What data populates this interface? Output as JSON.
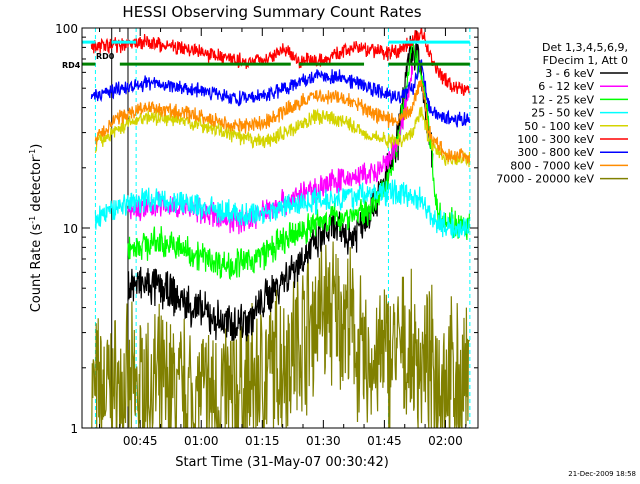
{
  "chart_data": {
    "type": "line",
    "title": "HESSI Observing Summary Count Rates",
    "xlabel": "Start Time (31-May-07 00:30:42)",
    "ylabel_main": "Count Rate (s",
    "ylabel_sup": "-1",
    "ylabel_tail": " detector",
    "ylabel_close": ")",
    "yscale": "log",
    "ylim": [
      1,
      100
    ],
    "y_ticks": [
      "1",
      "10",
      "100"
    ],
    "xlim_min": [
      30.7,
      108
    ],
    "x_ticks": [
      {
        "t": 45,
        "label": "00:45"
      },
      {
        "t": 60,
        "label": "01:00"
      },
      {
        "t": 75,
        "label": "01:15"
      },
      {
        "t": 90,
        "label": "01:30"
      },
      {
        "t": 105,
        "label": "01:45"
      },
      {
        "t": 120,
        "label": "02:00"
      }
    ],
    "flag_labels": {
      "a": "RD4",
      "b": "RD0"
    },
    "timestamp": "21-Dec-2009 18:58",
    "legend": {
      "line1": "Det 1,3,4,5,6,9,",
      "line2": "FDecim 1, Att 0",
      "entries": [
        {
          "label": "3 - 6 keV",
          "color": "#000000"
        },
        {
          "label": "6 - 12 keV",
          "color": "#ff00ff"
        },
        {
          "label": "12 - 25 keV",
          "color": "#00ff00"
        },
        {
          "label": "25 - 50 keV",
          "color": "#00ffff"
        },
        {
          "label": "50 - 100 keV",
          "color": "#d4d400"
        },
        {
          "label": "100 - 300 keV",
          "color": "#ff0000"
        },
        {
          "label": "300 - 800 keV",
          "color": "#0000ff"
        },
        {
          "label": "800 - 7000 keV",
          "color": "#ff8c00"
        },
        {
          "label": "7000 - 20000 keV",
          "color": "#808000"
        }
      ]
    },
    "series": [
      {
        "color": "#808000",
        "noise": 0.3,
        "points": [
          [
            33,
            1.5
          ],
          [
            50,
            1.6
          ],
          [
            60,
            1.4
          ],
          [
            70,
            1.5
          ],
          [
            80,
            2.2
          ],
          [
            90,
            4.0
          ],
          [
            96,
            3.5
          ],
          [
            100,
            2.0
          ],
          [
            108,
            2.5
          ],
          [
            115,
            2.0
          ],
          [
            126,
            1.6
          ]
        ]
      },
      {
        "color": "#000000",
        "noise": 0.08,
        "points": [
          [
            42,
            5.3
          ],
          [
            50,
            5.0
          ],
          [
            58,
            4.0
          ],
          [
            66,
            3.3
          ],
          [
            72,
            3.5
          ],
          [
            78,
            5.0
          ],
          [
            86,
            7.5
          ],
          [
            92,
            10.0
          ],
          [
            97,
            9.0
          ],
          [
            101,
            12.0
          ],
          [
            104,
            15.0
          ],
          [
            108,
            25.0
          ],
          [
            111,
            70.0
          ],
          [
            113,
            80.0
          ],
          [
            115,
            40.0
          ],
          [
            117,
            20.0
          ]
        ]
      },
      {
        "color": "#00ff00",
        "noise": 0.06,
        "points": [
          [
            42,
            8.0
          ],
          [
            50,
            8.5
          ],
          [
            58,
            7.5
          ],
          [
            66,
            6.5
          ],
          [
            72,
            6.8
          ],
          [
            78,
            8.0
          ],
          [
            84,
            9.5
          ],
          [
            90,
            11.0
          ],
          [
            96,
            11.5
          ],
          [
            100,
            12.0
          ],
          [
            104,
            14.0
          ],
          [
            108,
            25.0
          ],
          [
            112,
            80.0
          ],
          [
            115,
            50.0
          ],
          [
            118,
            12.0
          ],
          [
            124,
            10.0
          ],
          [
            126,
            10.0
          ]
        ]
      },
      {
        "color": "#ff00ff",
        "noise": 0.05,
        "points": [
          [
            42,
            12.0
          ],
          [
            50,
            13.0
          ],
          [
            58,
            12.5
          ],
          [
            66,
            11.0
          ],
          [
            72,
            11.0
          ],
          [
            78,
            13.0
          ],
          [
            86,
            15.0
          ],
          [
            92,
            17.0
          ],
          [
            98,
            18.0
          ],
          [
            104,
            19.0
          ],
          [
            108,
            25.0
          ],
          [
            112,
            60.0
          ]
        ]
      },
      {
        "color": "#00ffff",
        "noise": 0.05,
        "points": [
          [
            34,
            11.0
          ],
          [
            40,
            13.0
          ],
          [
            46,
            14.0
          ],
          [
            54,
            13.5
          ],
          [
            62,
            12.5
          ],
          [
            70,
            11.5
          ],
          [
            76,
            12.0
          ],
          [
            82,
            13.0
          ],
          [
            90,
            14.0
          ],
          [
            98,
            14.5
          ],
          [
            104,
            15.0
          ],
          [
            110,
            15.0
          ],
          [
            114,
            14.0
          ],
          [
            118,
            10.5
          ],
          [
            124,
            10.0
          ],
          [
            126,
            10.0
          ]
        ]
      },
      {
        "color": "#d4d400",
        "noise": 0.03,
        "points": [
          [
            34,
            26.0
          ],
          [
            40,
            32.0
          ],
          [
            46,
            36.0
          ],
          [
            54,
            35.0
          ],
          [
            62,
            32.0
          ],
          [
            70,
            28.0
          ],
          [
            76,
            27.0
          ],
          [
            82,
            31.0
          ],
          [
            88,
            36.0
          ],
          [
            94,
            35.0
          ],
          [
            100,
            30.0
          ],
          [
            104,
            28.0
          ],
          [
            108,
            27.0
          ],
          [
            112,
            30.0
          ],
          [
            114,
            40.0
          ],
          [
            116,
            28.0
          ],
          [
            120,
            22.0
          ],
          [
            126,
            22.0
          ]
        ]
      },
      {
        "color": "#ff8c00",
        "noise": 0.03,
        "points": [
          [
            34,
            28.0
          ],
          [
            40,
            36.0
          ],
          [
            46,
            40.0
          ],
          [
            54,
            38.0
          ],
          [
            62,
            35.0
          ],
          [
            70,
            32.0
          ],
          [
            76,
            34.0
          ],
          [
            82,
            40.0
          ],
          [
            88,
            46.0
          ],
          [
            94,
            45.0
          ],
          [
            100,
            40.0
          ],
          [
            104,
            36.0
          ],
          [
            108,
            34.0
          ],
          [
            112,
            40.0
          ],
          [
            114,
            55.0
          ],
          [
            116,
            30.0
          ],
          [
            120,
            23.0
          ],
          [
            126,
            23.0
          ]
        ]
      },
      {
        "color": "#0000ff",
        "noise": 0.03,
        "points": [
          [
            33,
            45.0
          ],
          [
            40,
            50.0
          ],
          [
            46,
            53.0
          ],
          [
            54,
            51.0
          ],
          [
            62,
            48.0
          ],
          [
            70,
            44.0
          ],
          [
            76,
            46.0
          ],
          [
            82,
            52.0
          ],
          [
            88,
            58.0
          ],
          [
            94,
            57.0
          ],
          [
            100,
            52.0
          ],
          [
            104,
            48.0
          ],
          [
            108,
            45.0
          ],
          [
            112,
            50.0
          ],
          [
            114,
            70.0
          ],
          [
            116,
            40.0
          ],
          [
            120,
            35.0
          ],
          [
            126,
            35.0
          ]
        ]
      },
      {
        "color": "#ff0000",
        "noise": 0.03,
        "points": [
          [
            33,
            80.0
          ],
          [
            40,
            82.0
          ],
          [
            46,
            85.0
          ],
          [
            54,
            80.0
          ],
          [
            62,
            74.0
          ],
          [
            70,
            68.0
          ],
          [
            76,
            70.0
          ],
          [
            80,
            80.0
          ],
          [
            84,
            68.0
          ],
          [
            90,
            70.0
          ],
          [
            94,
            75.0
          ],
          [
            98,
            80.0
          ],
          [
            102,
            78.0
          ],
          [
            106,
            74.0
          ],
          [
            110,
            80.0
          ],
          [
            114,
            95.0
          ],
          [
            118,
            60.0
          ],
          [
            122,
            50.0
          ],
          [
            126,
            50.0
          ]
        ]
      }
    ],
    "flag_lines": [
      {
        "name": "rd4-flag",
        "color": "#008000",
        "y": 66,
        "segments": [
          [
            30.7,
            34
          ],
          [
            40,
            82
          ],
          [
            84,
            100
          ],
          [
            106,
            126
          ]
        ]
      },
      {
        "name": "rd0-flag",
        "color": "#00ffff",
        "y": 85,
        "segments": [
          [
            30.7,
            34
          ],
          [
            38,
            44
          ],
          [
            106,
            126
          ]
        ]
      }
    ],
    "vertical_markers": {
      "cyan_t": [
        34,
        44,
        106,
        126
      ],
      "black_t": [
        38,
        42
      ]
    }
  }
}
